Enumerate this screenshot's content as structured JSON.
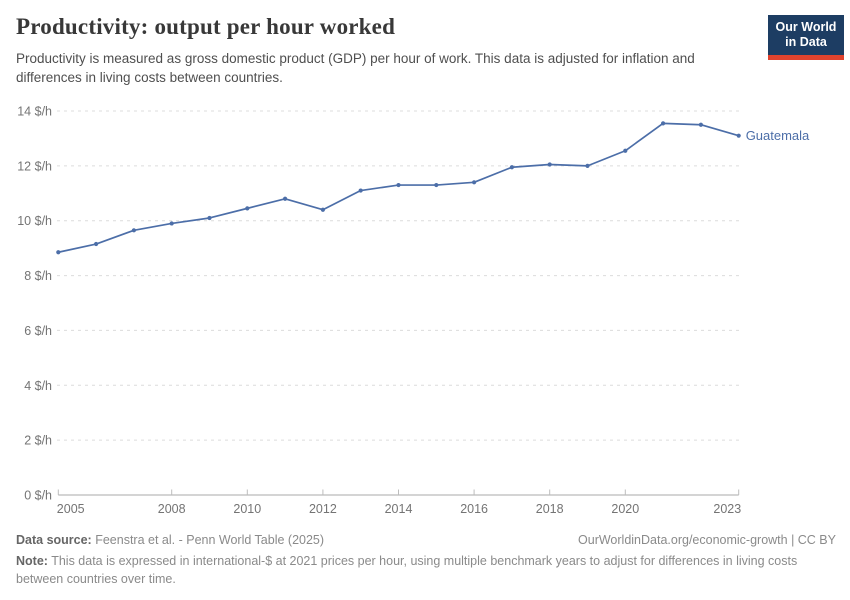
{
  "header": {
    "title": "Productivity: output per hour worked",
    "subtitle": "Productivity is measured as gross domestic product (GDP) per hour of work. This data is adjusted for inflation and differences in living costs between countries.",
    "logo": {
      "line1": "Our World",
      "line2": "in Data",
      "bg_color": "#1d3d63",
      "stripe_color": "#e0432e"
    }
  },
  "chart_data": {
    "type": "line",
    "title": "Productivity: output per hour worked",
    "x": [
      2005,
      2006,
      2007,
      2008,
      2009,
      2010,
      2011,
      2012,
      2013,
      2014,
      2015,
      2016,
      2017,
      2018,
      2019,
      2020,
      2021,
      2022,
      2023
    ],
    "series": [
      {
        "name": "Guatemala",
        "color": "#4c6ea8",
        "values": [
          8.85,
          9.15,
          9.65,
          9.9,
          10.1,
          10.45,
          10.8,
          10.4,
          11.1,
          11.3,
          11.3,
          11.4,
          11.95,
          12.05,
          12.0,
          12.55,
          13.55,
          13.5,
          13.1
        ]
      }
    ],
    "ylim": [
      0,
      14
    ],
    "yticks": [
      0,
      2,
      4,
      6,
      8,
      10,
      12,
      14
    ],
    "ytick_suffix": " $/h",
    "xticks": [
      2005,
      2008,
      2010,
      2012,
      2014,
      2016,
      2018,
      2020,
      2023
    ],
    "grid": "horizontal-dashed",
    "legend_position": "end-of-line",
    "colors": {
      "gridline": "#dcdcdc",
      "axis_line": "#a8a8a8",
      "tick_label": "#747474"
    }
  },
  "footer": {
    "source_label": "Data source:",
    "source_text": "Feenstra et al. - Penn World Table (2025)",
    "link_text": "OurWorldinData.org/economic-growth | CC BY",
    "note_label": "Note:",
    "note_text": "This data is expressed in international-$ at 2021 prices per hour, using multiple benchmark years to adjust for differences in living costs between countries over time."
  }
}
